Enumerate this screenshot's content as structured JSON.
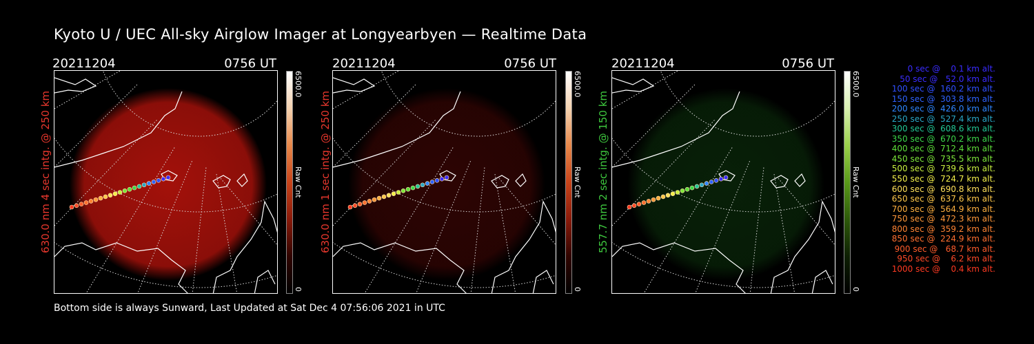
{
  "title": "Kyoto U / UEC All-sky Airglow Imager at Longyearbyen — Realtime Data",
  "panels": [
    {
      "date": "20211204",
      "time": "0756 UT",
      "side_label": "630.0 nm 4 sec intg. @ 250 km",
      "label_color": "#e8372d",
      "colorbar_max": "6500.0",
      "colorbar_unit": "Raw Cnt",
      "colorbar_min": "0",
      "glow_color": "#c0140c",
      "glow_intensity": 0.85,
      "bar_gradient": [
        "#ffffff",
        "#f4d2b0",
        "#e8884a",
        "#c8441a",
        "#8a1a0a",
        "#300400",
        "#000000"
      ]
    },
    {
      "date": "20211204",
      "time": "0756 UT",
      "side_label": "630.0 nm 1 sec intg. @ 250 km",
      "label_color": "#e8372d",
      "colorbar_max": "6500.0",
      "colorbar_unit": "Raw Cnt",
      "colorbar_min": "0",
      "glow_color": "#5a0806",
      "glow_intensity": 0.5,
      "bar_gradient": [
        "#ffffff",
        "#f4d2b0",
        "#e8884a",
        "#c8441a",
        "#8a1a0a",
        "#300400",
        "#000000"
      ]
    },
    {
      "date": "20211204",
      "time": "0756 UT",
      "side_label": "557.7 nm 2 sec intg. @ 150 km",
      "label_color": "#3ec83e",
      "colorbar_max": "6500.0",
      "colorbar_unit": "Raw Cnt",
      "colorbar_min": "0",
      "glow_color": "#0e3a0e",
      "glow_intensity": 0.55,
      "bar_gradient": [
        "#ffffff",
        "#d8f0b0",
        "#9ad04a",
        "#5a9a1a",
        "#2e5a0a",
        "#0e2004",
        "#000000"
      ]
    }
  ],
  "legend": [
    {
      "text": "   0 sec @    0.1 km alt.",
      "color": "#3a2cff"
    },
    {
      "text": "  50 sec @   52.0 km alt.",
      "color": "#3a2cff"
    },
    {
      "text": " 100 sec @  160.2 km alt.",
      "color": "#3050ff"
    },
    {
      "text": " 150 sec @  303.8 km alt.",
      "color": "#2f63ff"
    },
    {
      "text": " 200 sec @  426.0 km alt.",
      "color": "#2f86ff"
    },
    {
      "text": " 250 sec @  527.4 km alt.",
      "color": "#2aa8c8"
    },
    {
      "text": " 300 sec @  608.6 km alt.",
      "color": "#22c896"
    },
    {
      "text": " 350 sec @  670.2 km alt.",
      "color": "#3cd84a"
    },
    {
      "text": " 400 sec @  712.4 km alt.",
      "color": "#5ee03a"
    },
    {
      "text": " 450 sec @  735.5 km alt.",
      "color": "#7ee83a"
    },
    {
      "text": " 500 sec @  739.6 km alt.",
      "color": "#c8f040"
    },
    {
      "text": " 550 sec @  724.7 km alt.",
      "color": "#f4f04a"
    },
    {
      "text": " 600 sec @  690.8 km alt.",
      "color": "#ffe05a"
    },
    {
      "text": " 650 sec @  637.6 km alt.",
      "color": "#ffc84a"
    },
    {
      "text": " 700 sec @  564.9 km alt.",
      "color": "#ffb040"
    },
    {
      "text": " 750 sec @  472.3 km alt.",
      "color": "#ff983a"
    },
    {
      "text": " 800 sec @  359.2 km alt.",
      "color": "#ff8434"
    },
    {
      "text": " 850 sec @  224.9 km alt.",
      "color": "#ff7030"
    },
    {
      "text": " 900 sec @   68.7 km alt.",
      "color": "#ff5c2c"
    },
    {
      "text": " 950 sec @    6.2 km alt.",
      "color": "#ff4a28"
    },
    {
      "text": "1000 sec @    0.4 km alt.",
      "color": "#ff3a22"
    }
  ],
  "footer": "Bottom side is always Sunward, Last Updated at Sat Dec  4 07:56:06 2021 in UTC"
}
